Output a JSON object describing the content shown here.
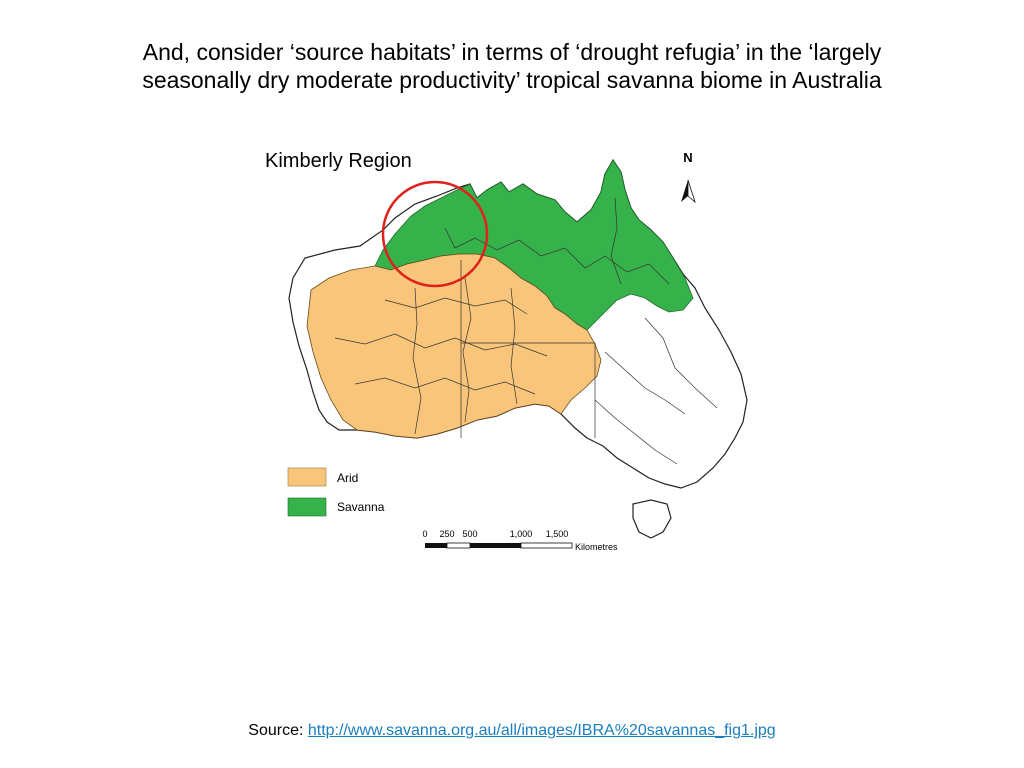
{
  "slide": {
    "title_line1": "And, consider ‘source habitats’ in terms of ‘drought refugia’ in the ‘largely",
    "title_line2": "seasonally dry moderate productivity’ tropical savanna biome in Australia"
  },
  "map": {
    "highlight_label": "Kimberly Region",
    "north_label": "N",
    "legend": [
      {
        "label": "Arid",
        "color": "#f9c57a"
      },
      {
        "label": "Savanna",
        "color": "#36b24b"
      }
    ],
    "scale": {
      "ticks": [
        "0",
        "250",
        "500",
        "1,000",
        "1,500"
      ],
      "unit": "Kilometres"
    },
    "colors": {
      "arid": "#f9c57a",
      "savanna": "#36b24b",
      "highlight": "#e0201b",
      "boundary": "#222222"
    }
  },
  "source": {
    "prefix": "Source: ",
    "url": "http://www.savanna.org.au/all/images/IBRA%20savannas_fig1.jpg"
  }
}
